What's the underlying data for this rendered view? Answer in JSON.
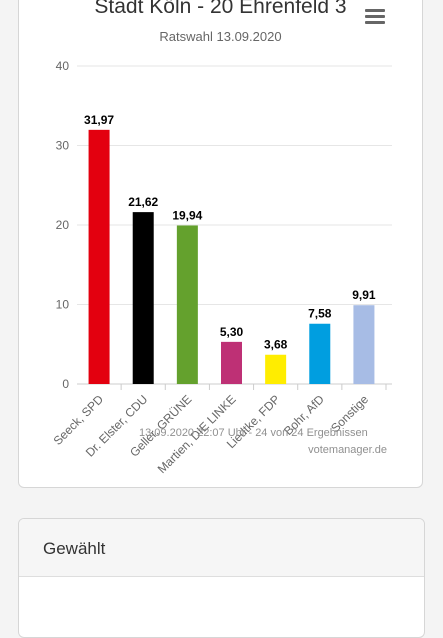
{
  "chart_data": {
    "type": "bar",
    "title": "Stadt Köln - 20 Ehrenfeld 3",
    "subtitle": "Ratswahl 13.09.2020",
    "categories": [
      "Seeck, SPD",
      "Dr. Elster, CDU",
      "Geller, GRÜNE",
      "Martien, DIE LINKE",
      "Liedtke, FDP",
      "Bohr, AfD",
      "Sonstige"
    ],
    "values": [
      31.97,
      21.62,
      19.94,
      5.3,
      3.68,
      7.58,
      9.91
    ],
    "value_labels": [
      "31,97",
      "21,62",
      "19,94",
      "5,30",
      "3,68",
      "7,58",
      "9,91"
    ],
    "colors": [
      "#e3000f",
      "#000000",
      "#64a12d",
      "#be3075",
      "#ffed00",
      "#009ee0",
      "#a7bce5"
    ],
    "y_ticks": [
      "0",
      "10",
      "20",
      "30",
      "40"
    ],
    "ylim": [
      0,
      40
    ],
    "grid": true,
    "legend": false
  },
  "chart": {
    "footer": "13.09.2020 22:07 Uhr - 24 von 24 Ergebnissen",
    "credit": "votemanager.de",
    "menu_icon": "hamburger-menu-icon"
  },
  "panel": {
    "title": "Gewählt"
  }
}
